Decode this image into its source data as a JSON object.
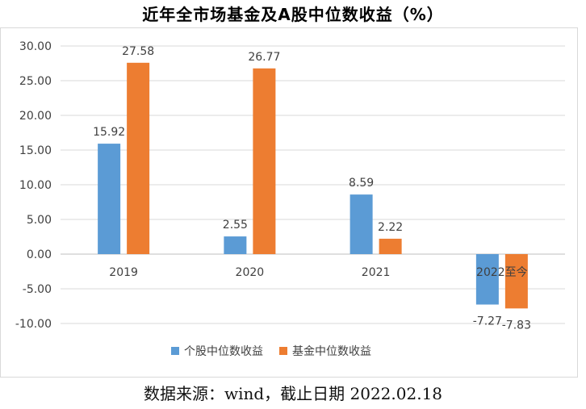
{
  "chart_data": {
    "type": "bar",
    "title": "近年全市场基金及A股中位数收益（%）",
    "categories": [
      "2019",
      "2020",
      "2021",
      "2022至今"
    ],
    "series": [
      {
        "name": "个股中位数收益",
        "color": "#5b9bd5",
        "values": [
          15.92,
          2.55,
          8.59,
          -7.27
        ],
        "labels": [
          "15.92",
          "2.55",
          "8.59",
          "-7.27"
        ]
      },
      {
        "name": "基金中位数收益",
        "color": "#ed7d31",
        "values": [
          27.58,
          26.77,
          2.22,
          -7.83
        ],
        "labels": [
          "27.58",
          "26.77",
          "2.22",
          "-7.83"
        ]
      }
    ],
    "yticks": [
      "30.00",
      "25.00",
      "20.00",
      "15.00",
      "10.00",
      "5.00",
      "0.00",
      "-5.00",
      "-10.00"
    ],
    "ylim": [
      -10,
      30
    ],
    "grid": true,
    "legend": "bottom",
    "xlabel": "",
    "ylabel": ""
  },
  "source_note": "数据来源：wind，截止日期 2022.02.18"
}
